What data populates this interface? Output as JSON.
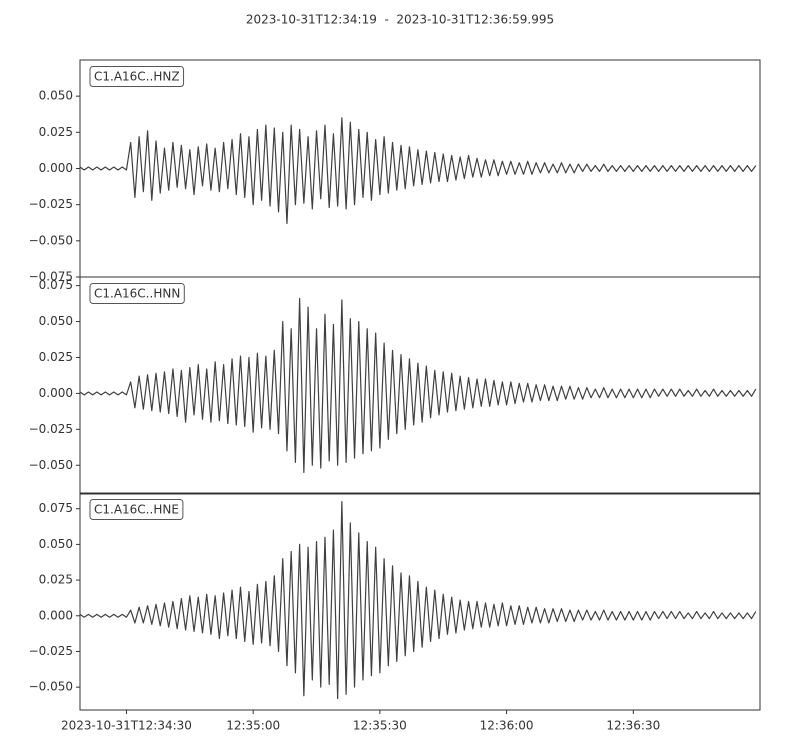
{
  "chart_data": {
    "type": "line",
    "title": "2023-10-31T12:34:19  -  2023-10-31T12:36:59.995",
    "xlim": [
      "2023-10-31T12:34:19",
      "2023-10-31T12:36:59.995"
    ],
    "xticks": [
      "2023-10-31T12:34:30",
      {
        "value": "2023-10-31T12:35:00",
        "label": "12:35:00"
      },
      {
        "value": "2023-10-31T12:35:30",
        "label": "12:35:30"
      },
      {
        "value": "2023-10-31T12:36:00",
        "label": "12:36:00"
      },
      {
        "value": "2023-10-31T12:36:30",
        "label": "12:36:30"
      }
    ],
    "x": [
      "2023-10-31T12:34:19",
      "2023-10-31T12:34:20",
      "2023-10-31T12:34:21",
      "2023-10-31T12:34:22",
      "2023-10-31T12:34:23",
      "2023-10-31T12:34:24",
      "2023-10-31T12:34:25",
      "2023-10-31T12:34:26",
      "2023-10-31T12:34:27",
      "2023-10-31T12:34:28",
      "2023-10-31T12:34:29",
      "2023-10-31T12:34:30",
      "2023-10-31T12:34:31",
      "2023-10-31T12:34:32",
      "2023-10-31T12:34:33",
      "2023-10-31T12:34:34",
      "2023-10-31T12:34:35",
      "2023-10-31T12:34:36",
      "2023-10-31T12:34:37",
      "2023-10-31T12:34:38",
      "2023-10-31T12:34:39",
      "2023-10-31T12:34:40",
      "2023-10-31T12:34:41",
      "2023-10-31T12:34:42",
      "2023-10-31T12:34:43",
      "2023-10-31T12:34:44",
      "2023-10-31T12:34:45",
      "2023-10-31T12:34:46",
      "2023-10-31T12:34:47",
      "2023-10-31T12:34:48",
      "2023-10-31T12:34:49",
      "2023-10-31T12:34:50",
      "2023-10-31T12:34:51",
      "2023-10-31T12:34:52",
      "2023-10-31T12:34:53",
      "2023-10-31T12:34:54",
      "2023-10-31T12:34:55",
      "2023-10-31T12:34:56",
      "2023-10-31T12:34:57",
      "2023-10-31T12:34:58",
      "2023-10-31T12:34:59",
      "2023-10-31T12:35:00",
      "2023-10-31T12:35:01",
      "2023-10-31T12:35:02",
      "2023-10-31T12:35:03",
      "2023-10-31T12:35:04",
      "2023-10-31T12:35:05",
      "2023-10-31T12:35:06",
      "2023-10-31T12:35:07",
      "2023-10-31T12:35:08",
      "2023-10-31T12:35:09",
      "2023-10-31T12:35:10",
      "2023-10-31T12:35:11",
      "2023-10-31T12:35:12",
      "2023-10-31T12:35:13",
      "2023-10-31T12:35:14",
      "2023-10-31T12:35:15",
      "2023-10-31T12:35:16",
      "2023-10-31T12:35:17",
      "2023-10-31T12:35:18",
      "2023-10-31T12:35:19",
      "2023-10-31T12:35:20",
      "2023-10-31T12:35:21",
      "2023-10-31T12:35:22",
      "2023-10-31T12:35:23",
      "2023-10-31T12:35:24",
      "2023-10-31T12:35:25",
      "2023-10-31T12:35:26",
      "2023-10-31T12:35:27",
      "2023-10-31T12:35:28",
      "2023-10-31T12:35:29",
      "2023-10-31T12:35:30",
      "2023-10-31T12:35:31",
      "2023-10-31T12:35:32",
      "2023-10-31T12:35:33",
      "2023-10-31T12:35:34",
      "2023-10-31T12:35:35",
      "2023-10-31T12:35:36",
      "2023-10-31T12:35:37",
      "2023-10-31T12:35:38",
      "2023-10-31T12:35:39",
      "2023-10-31T12:35:40",
      "2023-10-31T12:35:41",
      "2023-10-31T12:35:42",
      "2023-10-31T12:35:43",
      "2023-10-31T12:35:44",
      "2023-10-31T12:35:45",
      "2023-10-31T12:35:46",
      "2023-10-31T12:35:47",
      "2023-10-31T12:35:48",
      "2023-10-31T12:35:49",
      "2023-10-31T12:35:50",
      "2023-10-31T12:35:51",
      "2023-10-31T12:35:52",
      "2023-10-31T12:35:53",
      "2023-10-31T12:35:54",
      "2023-10-31T12:35:55",
      "2023-10-31T12:35:56",
      "2023-10-31T12:35:57",
      "2023-10-31T12:35:58",
      "2023-10-31T12:35:59",
      "2023-10-31T12:36:00",
      "2023-10-31T12:36:01",
      "2023-10-31T12:36:02",
      "2023-10-31T12:36:03",
      "2023-10-31T12:36:04",
      "2023-10-31T12:36:05",
      "2023-10-31T12:36:06",
      "2023-10-31T12:36:07",
      "2023-10-31T12:36:08",
      "2023-10-31T12:36:09",
      "2023-10-31T12:36:10",
      "2023-10-31T12:36:11",
      "2023-10-31T12:36:12",
      "2023-10-31T12:36:13",
      "2023-10-31T12:36:14",
      "2023-10-31T12:36:15",
      "2023-10-31T12:36:16",
      "2023-10-31T12:36:17",
      "2023-10-31T12:36:18",
      "2023-10-31T12:36:19",
      "2023-10-31T12:36:20",
      "2023-10-31T12:36:21",
      "2023-10-31T12:36:22",
      "2023-10-31T12:36:23",
      "2023-10-31T12:36:24",
      "2023-10-31T12:36:25",
      "2023-10-31T12:36:26",
      "2023-10-31T12:36:27",
      "2023-10-31T12:36:28",
      "2023-10-31T12:36:29",
      "2023-10-31T12:36:30",
      "2023-10-31T12:36:31",
      "2023-10-31T12:36:32",
      "2023-10-31T12:36:33",
      "2023-10-31T12:36:34",
      "2023-10-31T12:36:35",
      "2023-10-31T12:36:36",
      "2023-10-31T12:36:37",
      "2023-10-31T12:36:38",
      "2023-10-31T12:36:39",
      "2023-10-31T12:36:40",
      "2023-10-31T12:36:41",
      "2023-10-31T12:36:42",
      "2023-10-31T12:36:43",
      "2023-10-31T12:36:44",
      "2023-10-31T12:36:45",
      "2023-10-31T12:36:46",
      "2023-10-31T12:36:47",
      "2023-10-31T12:36:48",
      "2023-10-31T12:36:49",
      "2023-10-31T12:36:50",
      "2023-10-31T12:36:51",
      "2023-10-31T12:36:52",
      "2023-10-31T12:36:53",
      "2023-10-31T12:36:54",
      "2023-10-31T12:36:55",
      "2023-10-31T12:36:56",
      "2023-10-31T12:36:57",
      "2023-10-31T12:36:58",
      "2023-10-31T12:36:59"
    ],
    "series": [
      {
        "name": "C1.A16C..HNZ",
        "color": "#404040",
        "ylim": [
          -0.075,
          0.075
        ],
        "yticks": [
          {
            "value": -0.075,
            "label": "−0.075"
          },
          {
            "value": -0.05,
            "label": "−0.050"
          },
          {
            "value": -0.025,
            "label": "−0.025"
          },
          {
            "value": 0,
            "label": "0.000"
          },
          {
            "value": 0.025,
            "label": "0.025"
          },
          {
            "value": 0.05,
            "label": "0.050"
          }
        ],
        "values": [
          0.001,
          -0.001,
          0.001,
          -0.001,
          0.001,
          -0.001,
          0.001,
          -0.001,
          0.001,
          -0.001,
          0.001,
          -0.001,
          0.018,
          -0.02,
          0.022,
          -0.016,
          0.026,
          -0.022,
          0.019,
          -0.017,
          0.014,
          -0.015,
          0.018,
          -0.013,
          0.016,
          -0.014,
          0.013,
          -0.018,
          0.015,
          -0.012,
          0.017,
          -0.015,
          0.014,
          -0.016,
          0.018,
          -0.014,
          0.02,
          -0.018,
          0.024,
          -0.02,
          0.022,
          -0.025,
          0.027,
          -0.022,
          0.03,
          -0.026,
          0.028,
          -0.03,
          0.025,
          -0.038,
          0.03,
          -0.025,
          0.027,
          -0.024,
          0.022,
          -0.028,
          0.026,
          -0.021,
          0.03,
          -0.027,
          0.024,
          -0.026,
          0.035,
          -0.028,
          0.032,
          -0.025,
          0.027,
          -0.02,
          0.025,
          -0.022,
          0.02,
          -0.018,
          0.022,
          -0.017,
          0.018,
          -0.015,
          0.016,
          -0.014,
          0.015,
          -0.012,
          0.013,
          -0.011,
          0.012,
          -0.01,
          0.011,
          -0.009,
          0.01,
          -0.009,
          0.009,
          -0.008,
          0.008,
          -0.007,
          0.009,
          -0.006,
          0.007,
          -0.006,
          0.006,
          -0.005,
          0.006,
          -0.005,
          0.005,
          -0.004,
          0.005,
          -0.004,
          0.004,
          -0.004,
          0.005,
          -0.004,
          0.004,
          -0.003,
          0.004,
          -0.003,
          0.003,
          -0.003,
          0.004,
          -0.003,
          0.003,
          -0.003,
          0.003,
          -0.002,
          0.003,
          -0.002,
          0.002,
          -0.002,
          0.003,
          -0.002,
          0.002,
          -0.002,
          0.002,
          -0.002,
          0.002,
          -0.002,
          0.002,
          -0.002,
          0.002,
          -0.002,
          0.002,
          -0.002,
          0.002,
          -0.002,
          0.002,
          -0.002,
          0.002,
          -0.002,
          0.002,
          -0.002,
          0.002,
          -0.002,
          0.002,
          -0.002,
          0.002,
          -0.002,
          0.002,
          -0.002,
          0.002,
          -0.002,
          0.002,
          -0.002,
          0.002,
          -0.002,
          0.002
        ]
      },
      {
        "name": "C1.A16C..HNN",
        "color": "#404040",
        "ylim": [
          -0.07,
          0.081
        ],
        "yticks": [
          {
            "value": -0.05,
            "label": "−0.050"
          },
          {
            "value": -0.025,
            "label": "−0.025"
          },
          {
            "value": 0,
            "label": "0.000"
          },
          {
            "value": 0.025,
            "label": "0.025"
          },
          {
            "value": 0.05,
            "label": "0.050"
          },
          {
            "value": 0.075,
            "label": "0.075"
          }
        ],
        "values": [
          0.001,
          -0.001,
          0.001,
          -0.001,
          0.001,
          -0.001,
          0.001,
          -0.001,
          0.001,
          -0.001,
          0.001,
          -0.001,
          0.008,
          -0.01,
          0.012,
          -0.011,
          0.013,
          -0.012,
          0.014,
          -0.013,
          0.015,
          -0.014,
          0.017,
          -0.016,
          0.016,
          -0.02,
          0.018,
          -0.015,
          0.02,
          -0.018,
          0.017,
          -0.02,
          0.022,
          -0.019,
          0.02,
          -0.021,
          0.024,
          -0.022,
          0.026,
          -0.023,
          0.025,
          -0.027,
          0.028,
          -0.024,
          0.026,
          -0.025,
          0.03,
          -0.028,
          0.05,
          -0.04,
          0.045,
          -0.048,
          0.066,
          -0.055,
          0.06,
          -0.05,
          0.045,
          -0.052,
          0.055,
          -0.047,
          0.048,
          -0.05,
          0.065,
          -0.048,
          0.052,
          -0.045,
          0.05,
          -0.042,
          0.045,
          -0.04,
          0.042,
          -0.038,
          0.035,
          -0.032,
          0.03,
          -0.028,
          0.027,
          -0.025,
          0.024,
          -0.022,
          0.021,
          -0.02,
          0.019,
          -0.017,
          0.016,
          -0.015,
          0.015,
          -0.013,
          0.014,
          -0.012,
          0.012,
          -0.011,
          0.011,
          -0.01,
          0.01,
          -0.009,
          0.01,
          -0.009,
          0.009,
          -0.008,
          0.008,
          -0.008,
          0.008,
          -0.007,
          0.007,
          -0.006,
          0.007,
          -0.006,
          0.006,
          -0.005,
          0.006,
          -0.005,
          0.005,
          -0.005,
          0.005,
          -0.004,
          0.005,
          -0.004,
          0.004,
          -0.004,
          0.004,
          -0.003,
          0.003,
          -0.003,
          0.004,
          -0.003,
          0.003,
          -0.003,
          0.003,
          -0.003,
          0.003,
          -0.003,
          0.003,
          -0.003,
          0.003,
          -0.003,
          0.003,
          -0.002,
          0.003,
          -0.002,
          0.003,
          -0.002,
          0.003,
          -0.002,
          0.002,
          -0.002,
          0.003,
          -0.002,
          0.002,
          -0.002,
          0.003,
          -0.002,
          0.002,
          -0.002,
          0.002,
          -0.002,
          0.002,
          -0.002,
          0.002,
          -0.002,
          0.003
        ]
      },
      {
        "name": "C1.A16C..HNE",
        "color": "#404040",
        "ylim": [
          -0.066,
          0.086
        ],
        "yticks": [
          {
            "value": -0.05,
            "label": "−0.050"
          },
          {
            "value": -0.025,
            "label": "−0.025"
          },
          {
            "value": 0,
            "label": "0.000"
          },
          {
            "value": 0.025,
            "label": "0.025"
          },
          {
            "value": 0.05,
            "label": "0.050"
          },
          {
            "value": 0.075,
            "label": "0.075"
          }
        ],
        "values": [
          0.001,
          -0.001,
          0.001,
          -0.001,
          0.001,
          -0.001,
          0.001,
          -0.001,
          0.001,
          -0.001,
          0.001,
          -0.001,
          0.004,
          -0.005,
          0.006,
          -0.005,
          0.007,
          -0.006,
          0.008,
          -0.007,
          0.009,
          -0.008,
          0.01,
          -0.009,
          0.012,
          -0.01,
          0.014,
          -0.011,
          0.013,
          -0.012,
          0.015,
          -0.013,
          0.014,
          -0.016,
          0.016,
          -0.014,
          0.018,
          -0.016,
          0.02,
          -0.018,
          0.017,
          -0.02,
          0.022,
          -0.019,
          0.024,
          -0.021,
          0.028,
          -0.025,
          0.04,
          -0.035,
          0.045,
          -0.04,
          0.05,
          -0.056,
          0.048,
          -0.045,
          0.052,
          -0.05,
          0.055,
          -0.048,
          0.06,
          -0.058,
          0.08,
          -0.055,
          0.065,
          -0.05,
          0.058,
          -0.045,
          0.052,
          -0.042,
          0.048,
          -0.04,
          0.04,
          -0.035,
          0.035,
          -0.032,
          0.03,
          -0.028,
          0.028,
          -0.025,
          0.024,
          -0.022,
          0.02,
          -0.018,
          0.018,
          -0.016,
          0.015,
          -0.013,
          0.013,
          -0.012,
          0.011,
          -0.01,
          0.01,
          -0.009,
          0.01,
          -0.008,
          0.009,
          -0.008,
          0.008,
          -0.007,
          0.009,
          -0.007,
          0.007,
          -0.006,
          0.007,
          -0.006,
          0.006,
          -0.005,
          0.006,
          -0.005,
          0.005,
          -0.005,
          0.005,
          -0.004,
          0.005,
          -0.004,
          0.004,
          -0.004,
          0.004,
          -0.003,
          0.004,
          -0.003,
          0.003,
          -0.003,
          0.004,
          -0.003,
          0.003,
          -0.003,
          0.003,
          -0.003,
          0.003,
          -0.003,
          0.003,
          -0.003,
          0.003,
          -0.003,
          0.003,
          -0.002,
          0.003,
          -0.002,
          0.003,
          -0.002,
          0.003,
          -0.002,
          0.002,
          -0.002,
          0.003,
          -0.002,
          0.002,
          -0.002,
          0.003,
          -0.002,
          0.002,
          -0.002,
          0.002,
          -0.002,
          0.002,
          -0.002,
          0.002,
          -0.002,
          0.003
        ]
      }
    ]
  }
}
